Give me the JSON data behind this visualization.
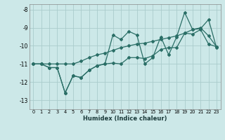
{
  "title": "",
  "xlabel": "Humidex (Indice chaleur)",
  "xlim": [
    -0.5,
    23.5
  ],
  "ylim": [
    -13.5,
    -7.7
  ],
  "yticks": [
    -13,
    -12,
    -11,
    -10,
    -9,
    -8
  ],
  "xticks": [
    0,
    1,
    2,
    3,
    4,
    5,
    6,
    7,
    8,
    9,
    10,
    11,
    12,
    13,
    14,
    15,
    16,
    17,
    18,
    19,
    20,
    21,
    22,
    23
  ],
  "bg_color": "#cce8e8",
  "grid_color": "#aacccc",
  "line_color": "#2a6e66",
  "line1_y": [
    -11.0,
    -11.0,
    -11.2,
    -11.2,
    -12.6,
    -11.65,
    -11.75,
    -11.35,
    -11.1,
    -11.0,
    -10.95,
    -11.0,
    -10.65,
    -10.65,
    -10.7,
    -10.55,
    -10.2,
    -10.1,
    -10.1,
    -9.3,
    -9.35,
    -9.1,
    -9.9,
    -10.05
  ],
  "line2_y": [
    -11.0,
    -11.0,
    -11.2,
    -11.2,
    -12.6,
    -11.65,
    -11.75,
    -11.35,
    -11.1,
    -11.0,
    -9.4,
    -9.65,
    -9.2,
    -9.4,
    -11.0,
    -10.65,
    -9.5,
    -10.5,
    -9.5,
    -8.15,
    -9.1,
    -9.05,
    -8.55,
    -10.1
  ],
  "line3_y": [
    -11.0,
    -11.0,
    -11.0,
    -11.0,
    -11.0,
    -11.0,
    -10.85,
    -10.65,
    -10.5,
    -10.4,
    -10.25,
    -10.1,
    -10.0,
    -9.9,
    -9.85,
    -9.75,
    -9.65,
    -9.55,
    -9.45,
    -9.3,
    -9.1,
    -9.0,
    -9.45,
    -10.05
  ]
}
